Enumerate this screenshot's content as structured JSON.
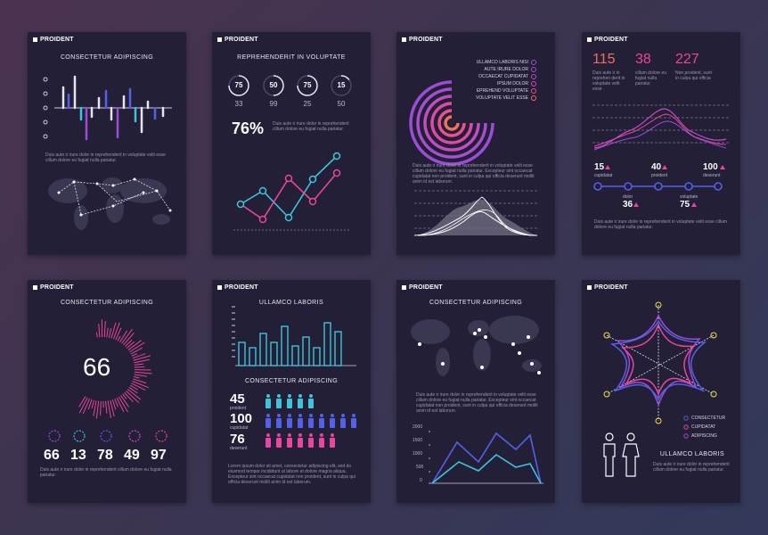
{
  "brand": "PROIDENT",
  "lorem2": "Duis aute ir irure dolor in reprehenderit in voluptate velit esse cillum dolore eu fugiat nulla pariatur.",
  "lorem_long": "Duis aute ir irure dolor in reprehenderit in voluptate velit esse cillum dolore eu fugiat nulla pariatur. Excepteur sint occaecat cupidatat non proident, sunt in culpa qui officia deserunt mollit anim id est laborum.",
  "lorem_short": "Duis aute ir irure dolor in reprehenderit cillum dolore eu fugiat nulla pariatur.",
  "lorem_card6": "Lorem ipsum dolor sit amet, consectetur adipiscing elit, sed do eiusmod tempor incididunt ut labore et dolore magna aliqua. Excepteur sint occaecat cupidatat non proident, sunt in culpa qui officia deserunt mollit anim id est laborum.",
  "card1": {
    "title": "CONSECTETUR ADIPISCING"
  },
  "card2": {
    "title": "REPREHENDERIT IN VOLUPTATE",
    "percent": "76%",
    "circles": [
      {
        "top": "75",
        "bottom": "33",
        "level": 0.75
      },
      {
        "top": "50",
        "bottom": "99",
        "level": 0.5
      },
      {
        "top": "75",
        "bottom": "25",
        "level": 0.75
      },
      {
        "top": "15",
        "bottom": "50",
        "level": 0.15
      }
    ]
  },
  "card3": {
    "legend": [
      "ULLAMCO LABORIS NISI",
      "AUTE IRURE DOLOR",
      "OCCAECAT CUPIDATAT",
      "IPSUM DOLOR",
      "EPREHEND VOLUPTATE",
      "VOLUPTATE VELIT ESSE"
    ]
  },
  "card4": {
    "stats": [
      {
        "value": "115",
        "text": "Duis aute ir in reprehen derit in voluptate velit esse"
      },
      {
        "value": "38",
        "text": "cillum dolore eu fugiat nulla pariatur"
      },
      {
        "value": "227",
        "text": "Non proident, sunt in culpa qui officia"
      }
    ],
    "top_nums": [
      {
        "value": "15",
        "label": "cupidatat"
      },
      {
        "value": "40",
        "label": "proident"
      },
      {
        "value": "100",
        "label": "deserunt"
      }
    ],
    "bottom_nums": [
      {
        "value": "36",
        "label": "dolor"
      },
      {
        "value": "75",
        "label": "voluptate"
      }
    ]
  },
  "card5": {
    "title": "CONSECTETUR ADIPISCING",
    "center": "66",
    "nums": [
      "66",
      "13",
      "78",
      "49",
      "97"
    ]
  },
  "card6": {
    "title": "ULLAMCO LABORIS",
    "subtitle": "CONSECTETUR ADIPISCING",
    "rows": [
      {
        "value": "45",
        "label": "proident"
      },
      {
        "value": "100",
        "label": "cupidatat"
      },
      {
        "value": "76",
        "label": "deserunt"
      }
    ]
  },
  "card7": {
    "title": "CONSECTETUR ADIPISCING",
    "yticks": [
      "2000",
      "1500",
      "1000",
      "500",
      "0"
    ]
  },
  "card8": {
    "legend": [
      "CONSECTETUR",
      "CUPIDATAT",
      "ADIPISCING"
    ],
    "title": "ULLAMCO LABORIS"
  },
  "colors": {
    "pink": "#e8469f",
    "purple": "#9b4dd6",
    "cyan": "#3fc4da",
    "blue": "#5560e8",
    "orange": "#f0705a"
  }
}
